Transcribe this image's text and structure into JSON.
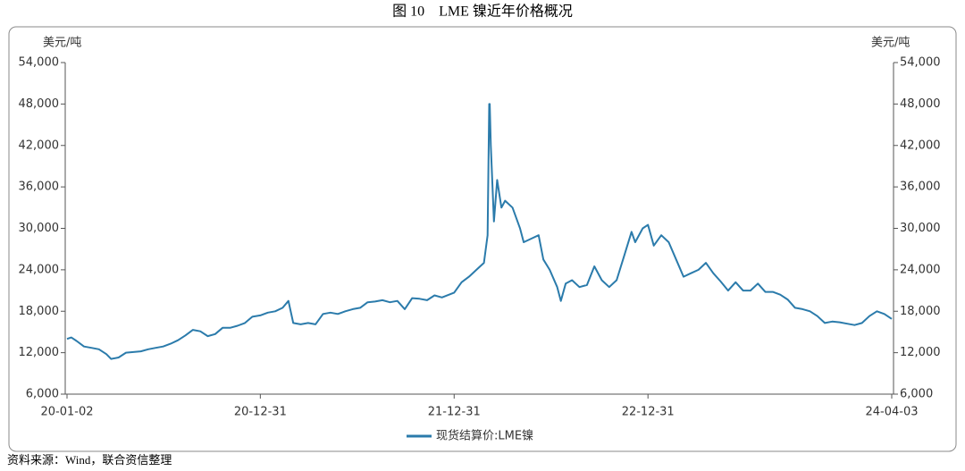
{
  "chart_data": {
    "type": "line",
    "title": "图 10　LME 镍近年价格概况",
    "source": "资料来源：Wind，联合资信整理",
    "y_label": "美元/吨",
    "y2_label": "美元/吨",
    "x": [
      "20-01-02",
      "20-01-10",
      "20-01-20",
      "20-02-03",
      "20-02-17",
      "20-03-02",
      "20-03-16",
      "20-03-25",
      "20-04-08",
      "20-04-22",
      "20-05-06",
      "20-05-20",
      "20-06-03",
      "20-06-17",
      "20-07-01",
      "20-07-15",
      "20-07-29",
      "20-08-12",
      "20-08-26",
      "20-09-09",
      "20-09-23",
      "20-10-07",
      "20-10-21",
      "20-11-04",
      "20-11-18",
      "20-12-02",
      "20-12-16",
      "20-12-31",
      "21-01-14",
      "21-01-28",
      "21-02-11",
      "21-02-22",
      "21-03-03",
      "21-03-17",
      "21-03-31",
      "21-04-14",
      "21-04-28",
      "21-05-12",
      "21-05-26",
      "21-06-09",
      "21-06-23",
      "21-07-07",
      "21-07-21",
      "21-08-04",
      "21-08-18",
      "21-09-01",
      "21-09-15",
      "21-09-29",
      "21-10-13",
      "21-10-27",
      "21-11-10",
      "21-11-24",
      "21-12-08",
      "21-12-31",
      "22-01-14",
      "22-01-28",
      "22-02-11",
      "22-02-25",
      "22-03-04",
      "22-03-07",
      "22-03-08",
      "22-03-10",
      "22-03-16",
      "22-03-22",
      "22-03-30",
      "22-04-06",
      "22-04-20",
      "22-05-04",
      "22-05-11",
      "22-05-25",
      "22-06-08",
      "22-06-17",
      "22-06-29",
      "22-07-13",
      "22-07-20",
      "22-07-29",
      "22-08-10",
      "22-08-24",
      "22-09-07",
      "22-09-21",
      "22-10-05",
      "22-10-19",
      "22-11-02",
      "22-11-16",
      "22-11-30",
      "22-12-07",
      "22-12-21",
      "22-12-31",
      "23-01-11",
      "23-01-25",
      "23-02-08",
      "23-02-22",
      "23-03-08",
      "23-03-22",
      "23-04-05",
      "23-04-19",
      "23-05-03",
      "23-05-17",
      "23-05-31",
      "23-06-14",
      "23-06-28",
      "23-07-12",
      "23-07-26",
      "23-08-09",
      "23-08-23",
      "23-09-06",
      "23-09-20",
      "23-10-04",
      "23-10-18",
      "23-11-01",
      "23-11-15",
      "23-11-29",
      "23-12-13",
      "23-12-27",
      "24-01-10",
      "24-01-24",
      "24-02-07",
      "24-02-21",
      "24-03-06",
      "24-03-20",
      "24-04-03"
    ],
    "series": [
      {
        "name": "现货结算价:LME镍",
        "color": "#2b7bab",
        "values": [
          14000,
          14200,
          13700,
          12900,
          12700,
          12500,
          11800,
          11100,
          11300,
          12000,
          12100,
          12200,
          12500,
          12700,
          12900,
          13300,
          13800,
          14500,
          15300,
          15100,
          14400,
          14700,
          15600,
          15600,
          15900,
          16300,
          17200,
          17400,
          17800,
          18000,
          18500,
          19500,
          16300,
          16100,
          16300,
          16100,
          17600,
          17800,
          17600,
          18000,
          18300,
          18500,
          19300,
          19400,
          19600,
          19300,
          19500,
          18300,
          19900,
          19800,
          19600,
          20300,
          20000,
          20700,
          22200,
          23000,
          24000,
          25000,
          29000,
          48000,
          48000,
          42000,
          31000,
          37000,
          33000,
          34000,
          33000,
          30000,
          28000,
          28500,
          29000,
          25500,
          24000,
          21500,
          19500,
          22000,
          22500,
          21500,
          21800,
          24500,
          22500,
          21500,
          22500,
          26000,
          29500,
          28000,
          30000,
          30500,
          27500,
          29000,
          28000,
          25500,
          23000,
          23500,
          24000,
          25000,
          23500,
          22300,
          21000,
          22200,
          21000,
          21000,
          22000,
          20800,
          20800,
          20400,
          19700,
          18500,
          18300,
          18000,
          17300,
          16300,
          16500,
          16400,
          16200,
          16000,
          16300,
          17300,
          18000,
          17600,
          16900
        ]
      }
    ],
    "xticks": [
      "20-01-02",
      "20-12-31",
      "21-12-31",
      "22-12-31",
      "24-04-03"
    ],
    "ylim": [
      6000,
      54000
    ],
    "yticks": [
      {
        "value": 6000,
        "label": "6,000"
      },
      {
        "value": 12000,
        "label": "12,000"
      },
      {
        "value": 18000,
        "label": "18,000"
      },
      {
        "value": 24000,
        "label": "24,000"
      },
      {
        "value": 30000,
        "label": "30,000"
      },
      {
        "value": 36000,
        "label": "36,000"
      },
      {
        "value": 42000,
        "label": "42,000"
      },
      {
        "value": 48000,
        "label": "48,000"
      },
      {
        "value": 54000,
        "label": "54,000"
      }
    ],
    "y2lim": [
      6000,
      54000
    ],
    "y2ticks": [
      {
        "value": 6000,
        "label": "6,000"
      },
      {
        "value": 12000,
        "label": "12,000"
      },
      {
        "value": 18000,
        "label": "18,000"
      },
      {
        "value": 24000,
        "label": "24,000"
      },
      {
        "value": 30000,
        "label": "30,000"
      },
      {
        "value": 36000,
        "label": "36,000"
      },
      {
        "value": 42000,
        "label": "42,000"
      },
      {
        "value": 48000,
        "label": "48,000"
      },
      {
        "value": 54000,
        "label": "54,000"
      }
    ],
    "legend": "bottom"
  }
}
